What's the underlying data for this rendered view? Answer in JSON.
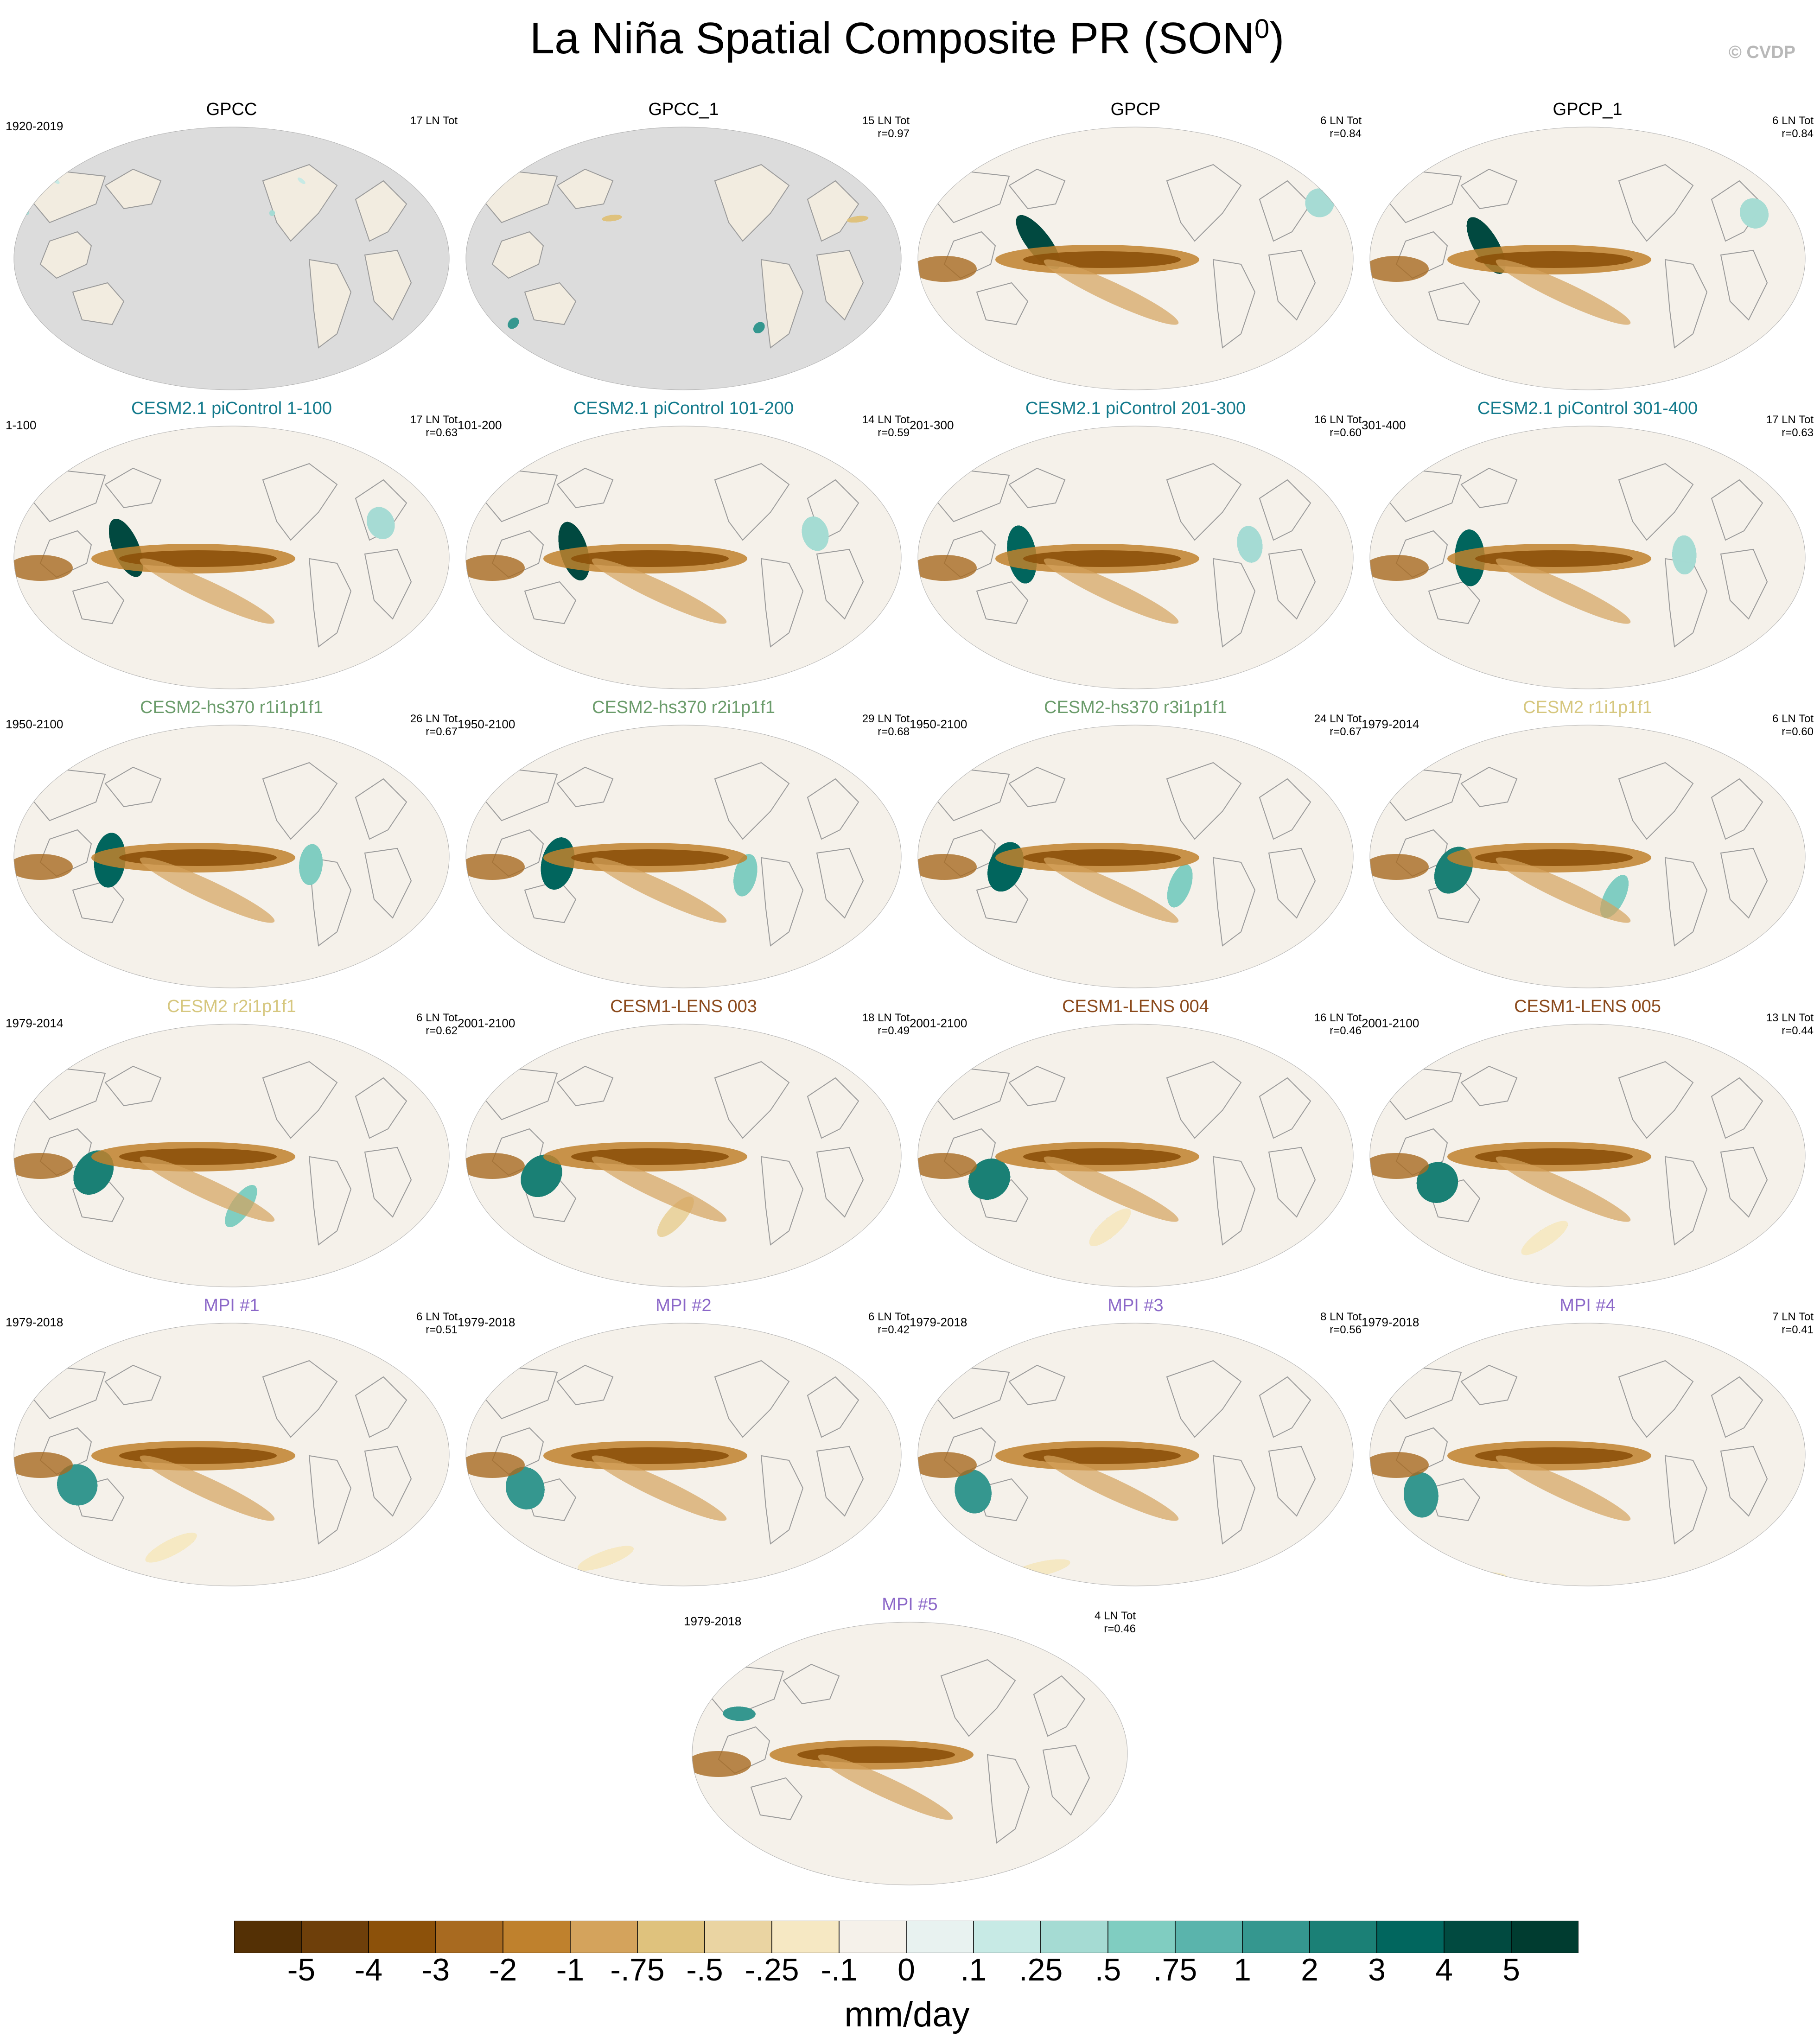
{
  "title_main": "La Niña Spatial Composite PR (SON",
  "title_sup": "0",
  "title_close": ")",
  "copyright": "© CVDP",
  "colors": {
    "cesm21_picontrol": "#137a8c",
    "cesm2_hs370": "#6b9c6b",
    "cesm2": "#d6c77f",
    "cesm1_lens": "#8b4a1c",
    "mpi": "#8b67c8",
    "observations": "#000000",
    "land_mask": "#dcdcdc"
  },
  "panels": [
    {
      "title": "GPCC",
      "title_color": "observations",
      "period": "1920-2019",
      "count": "17 LN Tot",
      "corr": "",
      "style": "obs-land"
    },
    {
      "title": "GPCC_1",
      "title_color": "observations",
      "period": "",
      "count": "15 LN Tot",
      "corr": "r=0.97",
      "style": "obs-land"
    },
    {
      "title": "GPCP",
      "title_color": "observations",
      "period": "",
      "count": "6 LN Tot",
      "corr": "r=0.84",
      "style": "obs"
    },
    {
      "title": "GPCP_1",
      "title_color": "observations",
      "period": "",
      "count": "6 LN Tot",
      "corr": "r=0.84",
      "style": "obs"
    },
    {
      "title": "CESM2.1 piControl 1-100",
      "title_color": "cesm21_picontrol",
      "period": "1-100",
      "count": "17 LN Tot",
      "corr": "r=0.63",
      "style": "model"
    },
    {
      "title": "CESM2.1 piControl 101-200",
      "title_color": "cesm21_picontrol",
      "period": "101-200",
      "count": "14 LN Tot",
      "corr": "r=0.59",
      "style": "model"
    },
    {
      "title": "CESM2.1 piControl 201-300",
      "title_color": "cesm21_picontrol",
      "period": "201-300",
      "count": "16 LN Tot",
      "corr": "r=0.60",
      "style": "model"
    },
    {
      "title": "CESM2.1 piControl 301-400",
      "title_color": "cesm21_picontrol",
      "period": "301-400",
      "count": "17 LN Tot",
      "corr": "r=0.63",
      "style": "model"
    },
    {
      "title": "CESM2-hs370 r1i1p1f1",
      "title_color": "cesm2_hs370",
      "period": "1950-2100",
      "count": "26 LN Tot",
      "corr": "r=0.67",
      "style": "model"
    },
    {
      "title": "CESM2-hs370 r2i1p1f1",
      "title_color": "cesm2_hs370",
      "period": "1950-2100",
      "count": "29 LN Tot",
      "corr": "r=0.68",
      "style": "model"
    },
    {
      "title": "CESM2-hs370 r3i1p1f1",
      "title_color": "cesm2_hs370",
      "period": "1950-2100",
      "count": "24 LN Tot",
      "corr": "r=0.67",
      "style": "model"
    },
    {
      "title": "CESM2 r1i1p1f1",
      "title_color": "cesm2",
      "period": "1979-2014",
      "count": "6 LN Tot",
      "corr": "r=0.60",
      "style": "model"
    },
    {
      "title": "CESM2 r2i1p1f1",
      "title_color": "cesm2",
      "period": "1979-2014",
      "count": "6 LN Tot",
      "corr": "r=0.62",
      "style": "model"
    },
    {
      "title": "CESM1-LENS 003",
      "title_color": "cesm1_lens",
      "period": "2001-2100",
      "count": "18 LN Tot",
      "corr": "r=0.49",
      "style": "model"
    },
    {
      "title": "CESM1-LENS 004",
      "title_color": "cesm1_lens",
      "period": "2001-2100",
      "count": "16 LN Tot",
      "corr": "r=0.46",
      "style": "model"
    },
    {
      "title": "CESM1-LENS 005",
      "title_color": "cesm1_lens",
      "period": "2001-2100",
      "count": "13 LN Tot",
      "corr": "r=0.44",
      "style": "model"
    },
    {
      "title": "MPI #1",
      "title_color": "mpi",
      "period": "1979-2018",
      "count": "6 LN Tot",
      "corr": "r=0.51",
      "style": "model"
    },
    {
      "title": "MPI #2",
      "title_color": "mpi",
      "period": "1979-2018",
      "count": "6 LN Tot",
      "corr": "r=0.42",
      "style": "model"
    },
    {
      "title": "MPI #3",
      "title_color": "mpi",
      "period": "1979-2018",
      "count": "8 LN Tot",
      "corr": "r=0.56",
      "style": "model"
    },
    {
      "title": "MPI #4",
      "title_color": "mpi",
      "period": "1979-2018",
      "count": "7 LN Tot",
      "corr": "r=0.41",
      "style": "model"
    },
    {
      "title": "MPI #5",
      "title_color": "mpi",
      "period": "1979-2018",
      "count": "4 LN Tot",
      "corr": "r=0.46",
      "style": "model"
    }
  ],
  "colorbar": {
    "labels": [
      "-5",
      "-4",
      "-3",
      "-2",
      "-1",
      "-.75",
      "-.5",
      "-.25",
      "-.1",
      "0",
      ".1",
      ".25",
      ".5",
      ".75",
      "1",
      "2",
      "3",
      "4",
      "5"
    ],
    "colors": [
      "#543005",
      "#6e3f0a",
      "#8c510a",
      "#a86a20",
      "#bf812d",
      "#d4a35c",
      "#dfc27d",
      "#ead4a2",
      "#f6e8c3",
      "#f5f1ea",
      "#e8f2f0",
      "#c7eae5",
      "#a5dbd3",
      "#80cdc1",
      "#5ab4ac",
      "#35978f",
      "#1b8076",
      "#01665e",
      "#014a40",
      "#003c30"
    ],
    "units": "mm/day"
  }
}
